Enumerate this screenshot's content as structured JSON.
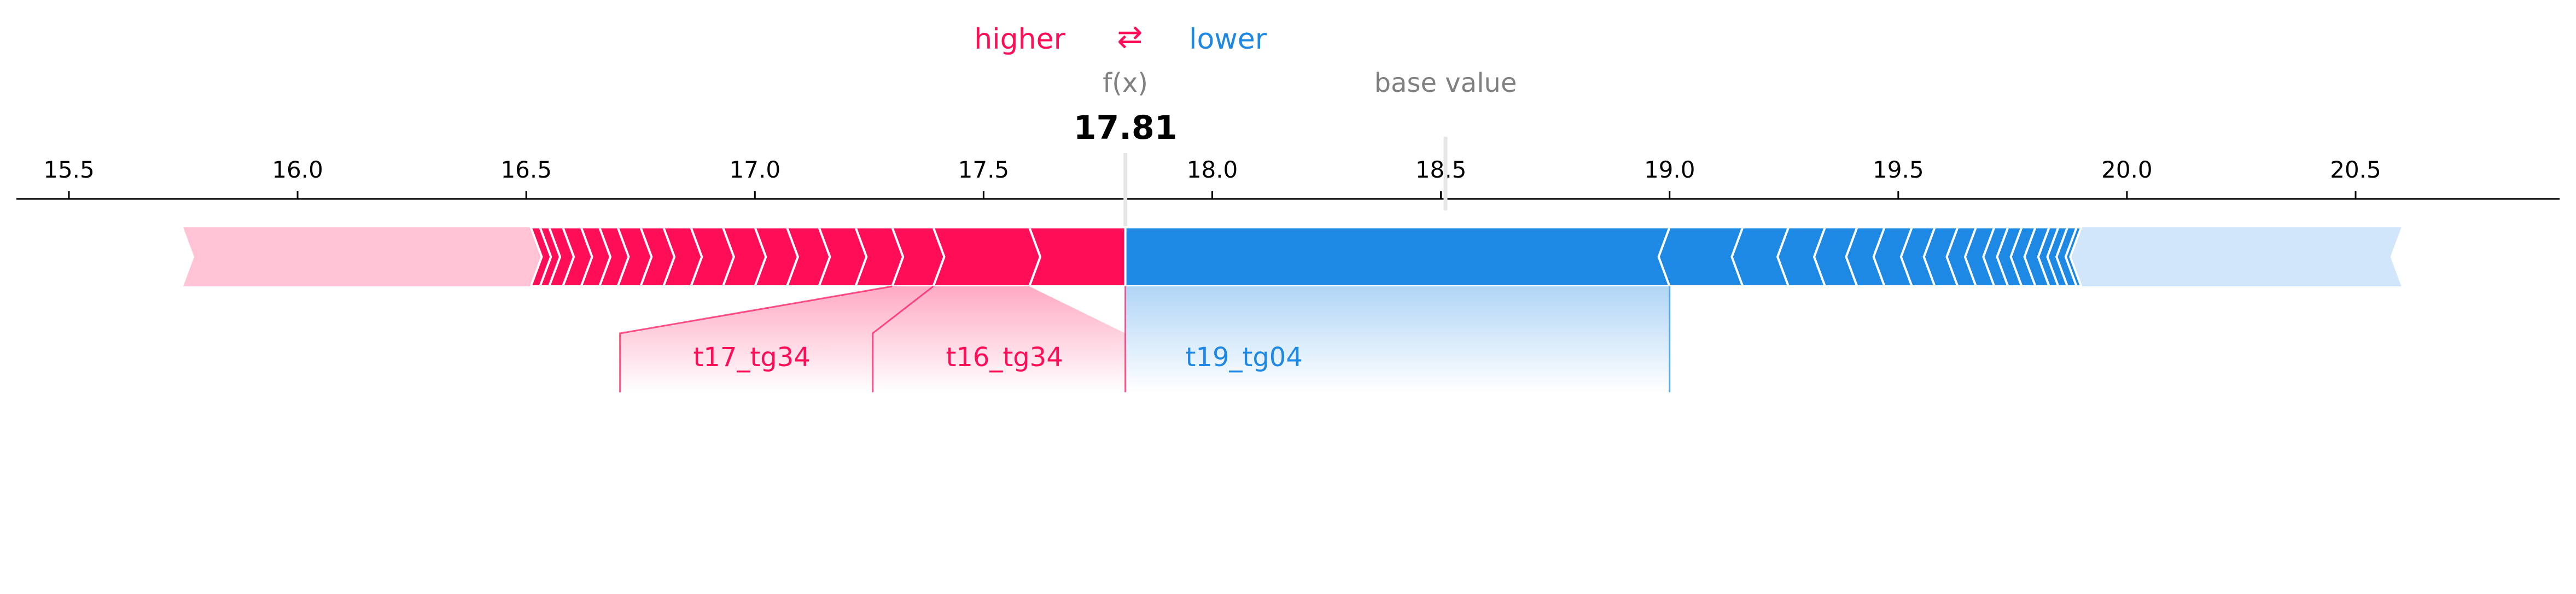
{
  "chart_data": {
    "type": "force",
    "legend": {
      "higher": "higher",
      "arrow": "⇄",
      "lower": "lower"
    },
    "fx_label": "f(x)",
    "fx_value": 17.81,
    "fx_display": "17.81",
    "base_label": "base value",
    "base_value": 18.51,
    "xlim": [
      15.4,
      20.95
    ],
    "ticks": [
      15.5,
      16.0,
      16.5,
      17.0,
      17.5,
      18.0,
      18.5,
      19.0,
      19.5,
      20.0,
      20.5
    ],
    "tick_labels": [
      "15.5",
      "16.0",
      "16.5",
      "17.0",
      "17.5",
      "18.0",
      "18.5",
      "19.0",
      "19.5",
      "20.0",
      "20.5"
    ],
    "positive_range": [
      15.75,
      17.81
    ],
    "negative_range": [
      17.81,
      20.6
    ],
    "positive_boundaries": [
      17.81,
      17.6,
      17.39,
      17.3,
      17.22,
      17.14,
      17.07,
      17.0,
      16.93,
      16.86,
      16.8,
      16.75,
      16.7,
      16.66,
      16.62,
      16.58,
      16.55,
      16.53,
      16.51
    ],
    "negative_boundaries": [
      17.81,
      19.0,
      19.16,
      19.26,
      19.34,
      19.41,
      19.47,
      19.53,
      19.58,
      19.63,
      19.67,
      19.71,
      19.74,
      19.77,
      19.8,
      19.83,
      19.85,
      19.87,
      19.89,
      19.9
    ],
    "labels": [
      {
        "name": "t17_tg34",
        "side": "positive",
        "segment": [
          17.3,
          17.39
        ]
      },
      {
        "name": "t16_tg34",
        "side": "positive",
        "segment": [
          17.39,
          17.6
        ]
      },
      {
        "name": "t19_tg04",
        "side": "negative",
        "segment": [
          17.81,
          19.0
        ]
      }
    ],
    "colors": {
      "positive": "#ff0d57",
      "positive_light": "#ffc3d5",
      "negative": "#1e88e5",
      "negative_light": "#d1e6fa",
      "text_gray": "#808080",
      "axis": "#000000"
    }
  }
}
